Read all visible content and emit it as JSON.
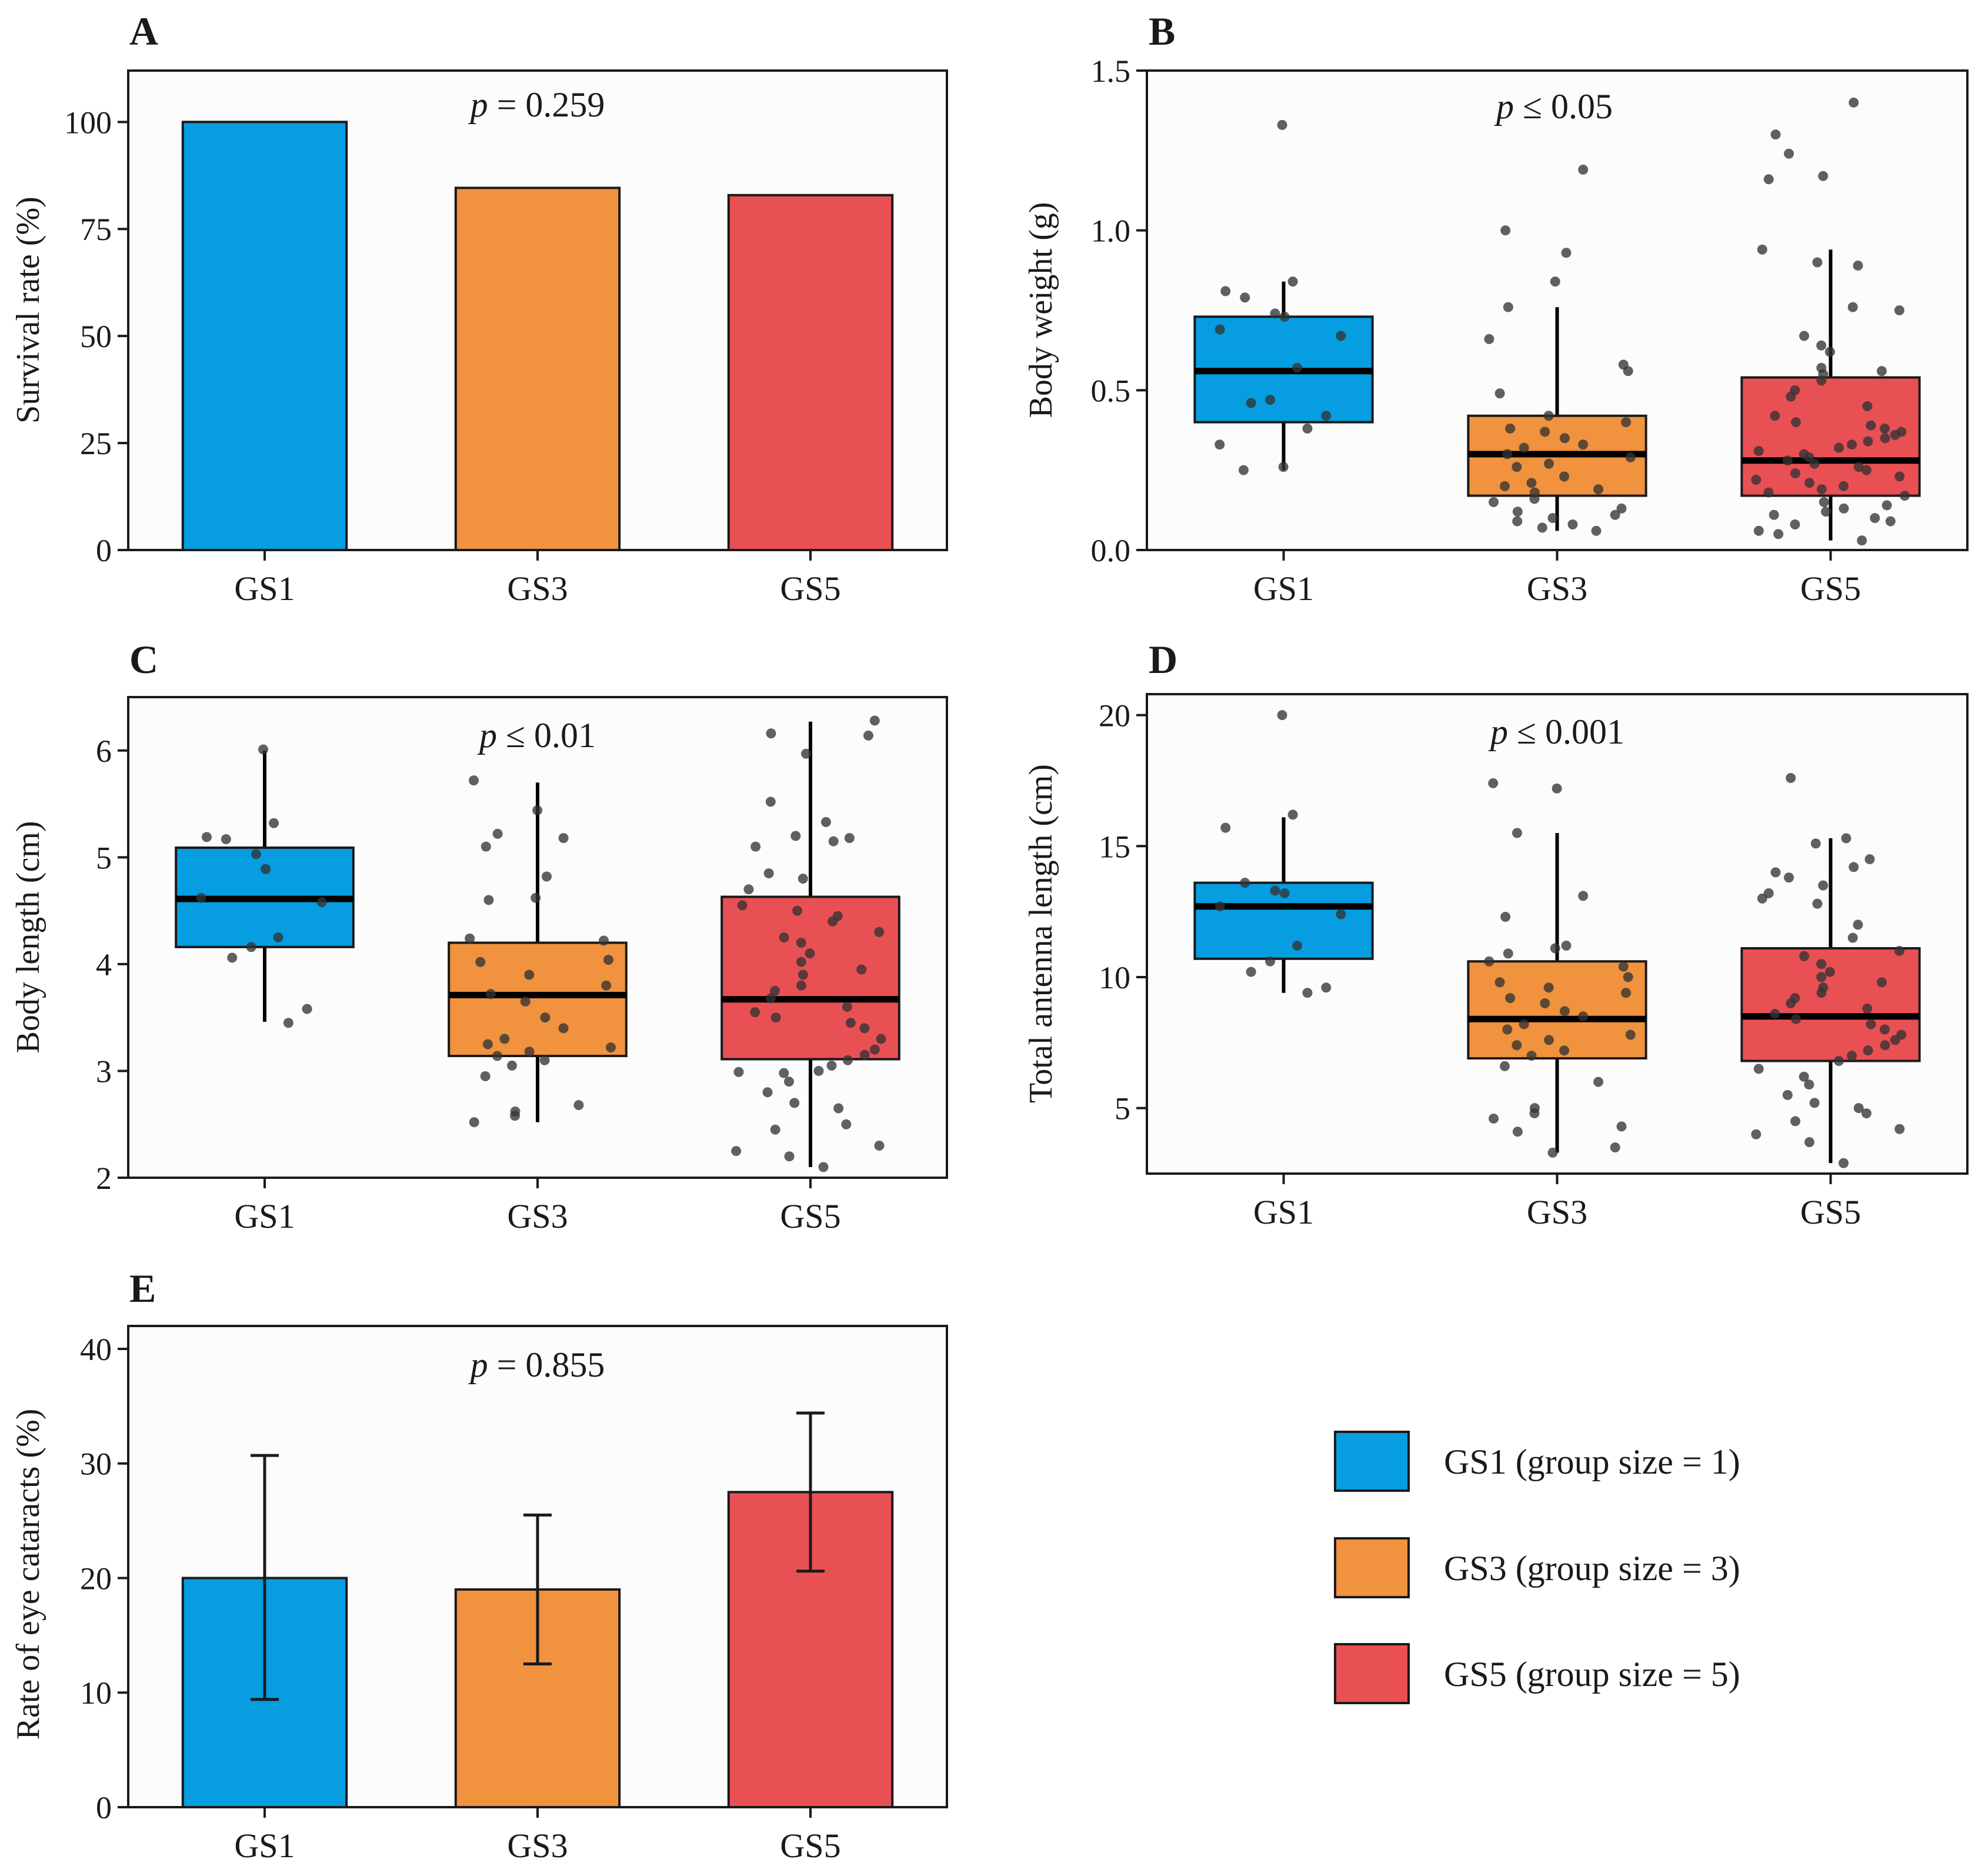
{
  "chart_data": [
    {
      "panel": "A",
      "type": "bar",
      "categories": [
        "GS1",
        "GS3",
        "GS5"
      ],
      "values": [
        100,
        84.6,
        82.9
      ],
      "ylabel": "Survival rate (%)",
      "xlabel": "",
      "ylim": [
        0,
        112
      ],
      "yticks": [
        0,
        25,
        50,
        75,
        100
      ],
      "p_symbol": "p",
      "p_text": " = 0.259"
    },
    {
      "panel": "B",
      "type": "box",
      "categories": [
        "GS1",
        "GS3",
        "GS5"
      ],
      "ylabel": "Body weight (g)",
      "xlabel": "",
      "ylim": [
        0,
        1.5
      ],
      "yticks": [
        0.0,
        0.5,
        1.0,
        1.5
      ],
      "ytick_labels": [
        "0.0",
        "0.5",
        "1.0",
        "1.5"
      ],
      "p_symbol": "p",
      "p_text": " ≤ 0.05",
      "boxes": [
        {
          "q1": 0.4,
          "median": 0.56,
          "q3": 0.73,
          "whisker_low": 0.25,
          "whisker_high": 0.84
        },
        {
          "q1": 0.17,
          "median": 0.3,
          "q3": 0.42,
          "whisker_low": 0.06,
          "whisker_high": 0.76
        },
        {
          "q1": 0.17,
          "median": 0.28,
          "q3": 0.54,
          "whisker_low": 0.03,
          "whisker_high": 0.94
        }
      ],
      "points": [
        [
          1.33,
          0.84,
          0.81,
          0.79,
          0.74,
          0.73,
          0.69,
          0.67,
          0.57,
          0.47,
          0.46,
          0.42,
          0.38,
          0.33,
          0.26,
          0.25
        ],
        [
          1.19,
          1.0,
          0.93,
          0.84,
          0.76,
          0.66,
          0.58,
          0.56,
          0.49,
          0.42,
          0.4,
          0.38,
          0.37,
          0.35,
          0.33,
          0.32,
          0.3,
          0.29,
          0.27,
          0.26,
          0.23,
          0.21,
          0.2,
          0.19,
          0.18,
          0.16,
          0.15,
          0.13,
          0.12,
          0.11,
          0.1,
          0.09,
          0.08,
          0.07,
          0.06
        ],
        [
          1.4,
          1.3,
          1.24,
          1.17,
          1.16,
          0.94,
          0.9,
          0.89,
          0.76,
          0.75,
          0.67,
          0.64,
          0.62,
          0.57,
          0.56,
          0.55,
          0.53,
          0.5,
          0.48,
          0.45,
          0.42,
          0.4,
          0.39,
          0.38,
          0.37,
          0.36,
          0.35,
          0.34,
          0.33,
          0.32,
          0.31,
          0.3,
          0.29,
          0.28,
          0.27,
          0.26,
          0.25,
          0.24,
          0.23,
          0.22,
          0.21,
          0.2,
          0.19,
          0.18,
          0.17,
          0.15,
          0.14,
          0.13,
          0.12,
          0.11,
          0.1,
          0.09,
          0.08,
          0.06,
          0.05,
          0.03
        ]
      ]
    },
    {
      "panel": "C",
      "type": "box",
      "categories": [
        "GS1",
        "GS3",
        "GS5"
      ],
      "ylabel": "Body length (cm)",
      "xlabel": "",
      "ylim": [
        2,
        6.5
      ],
      "yticks": [
        2,
        3,
        4,
        5,
        6
      ],
      "p_symbol": "p",
      "p_text": " ≤ 0.01",
      "boxes": [
        {
          "q1": 4.16,
          "median": 4.61,
          "q3": 5.09,
          "whisker_low": 3.46,
          "whisker_high": 6.0
        },
        {
          "q1": 3.14,
          "median": 3.71,
          "q3": 4.2,
          "whisker_low": 2.52,
          "whisker_high": 5.7
        },
        {
          "q1": 3.11,
          "median": 3.67,
          "q3": 4.63,
          "whisker_low": 2.1,
          "whisker_high": 6.27
        }
      ],
      "points": [
        [
          6.01,
          5.32,
          5.19,
          5.17,
          5.03,
          4.89,
          4.62,
          4.58,
          4.25,
          4.16,
          4.06,
          3.58,
          3.45
        ],
        [
          5.72,
          5.44,
          5.22,
          5.18,
          5.1,
          4.82,
          4.62,
          4.6,
          4.24,
          4.22,
          4.04,
          4.02,
          3.9,
          3.8,
          3.72,
          3.65,
          3.5,
          3.4,
          3.3,
          3.25,
          3.22,
          3.18,
          3.14,
          3.1,
          3.05,
          2.95,
          2.68,
          2.62,
          2.58,
          2.52
        ],
        [
          6.28,
          6.16,
          6.14,
          5.97,
          5.52,
          5.33,
          5.2,
          5.18,
          5.15,
          5.1,
          4.85,
          4.8,
          4.7,
          4.55,
          4.5,
          4.45,
          4.4,
          4.3,
          4.25,
          4.2,
          4.1,
          4.02,
          3.95,
          3.9,
          3.8,
          3.75,
          3.68,
          3.6,
          3.55,
          3.5,
          3.45,
          3.4,
          3.3,
          3.2,
          3.15,
          3.1,
          3.05,
          3.0,
          2.99,
          2.98,
          2.9,
          2.8,
          2.7,
          2.65,
          2.5,
          2.45,
          2.3,
          2.25,
          2.2,
          2.1
        ]
      ]
    },
    {
      "panel": "D",
      "type": "box",
      "categories": [
        "GS1",
        "GS3",
        "GS5"
      ],
      "ylabel": "Total antenna length (cm)",
      "xlabel": "",
      "ylim": [
        2.5,
        20.8
      ],
      "yticks": [
        5,
        10,
        15,
        20
      ],
      "p_symbol": "p",
      "p_text": " ≤ 0.001",
      "boxes": [
        {
          "q1": 10.7,
          "median": 12.7,
          "q3": 13.6,
          "whisker_low": 9.4,
          "whisker_high": 16.1
        },
        {
          "q1": 6.9,
          "median": 8.4,
          "q3": 10.6,
          "whisker_low": 3.3,
          "whisker_high": 15.5
        },
        {
          "q1": 6.8,
          "median": 8.5,
          "q3": 11.1,
          "whisker_low": 2.9,
          "whisker_high": 15.3
        }
      ],
      "points": [
        [
          20.0,
          16.2,
          15.7,
          13.6,
          13.3,
          13.2,
          12.7,
          12.4,
          11.2,
          10.6,
          10.2,
          9.6,
          9.4
        ],
        [
          17.4,
          17.2,
          15.5,
          13.1,
          12.3,
          11.2,
          11.1,
          10.9,
          10.6,
          10.4,
          10.0,
          9.8,
          9.6,
          9.4,
          9.2,
          9.0,
          8.7,
          8.5,
          8.2,
          8.0,
          7.8,
          7.6,
          7.4,
          7.2,
          7.0,
          6.6,
          6.0,
          5.0,
          4.8,
          4.6,
          4.3,
          4.1,
          3.5,
          3.3
        ],
        [
          17.6,
          15.3,
          15.1,
          14.5,
          14.2,
          14.0,
          13.8,
          13.5,
          13.2,
          13.0,
          12.8,
          12.0,
          11.5,
          11.0,
          10.8,
          10.5,
          10.2,
          10.0,
          9.8,
          9.6,
          9.4,
          9.2,
          9.0,
          8.8,
          8.6,
          8.4,
          8.2,
          8.0,
          7.8,
          7.6,
          7.4,
          7.2,
          7.0,
          6.8,
          6.5,
          6.2,
          5.9,
          5.5,
          5.2,
          5.0,
          4.8,
          4.5,
          4.2,
          4.0,
          3.7,
          2.9
        ]
      ]
    },
    {
      "panel": "E",
      "type": "bar",
      "categories": [
        "GS1",
        "GS3",
        "GS5"
      ],
      "values": [
        20.0,
        19.0,
        27.5
      ],
      "error_low": [
        9.4,
        12.5,
        20.6
      ],
      "error_high": [
        30.7,
        25.5,
        34.4
      ],
      "ylabel": "Rate of eye cataracts (%)",
      "xlabel": "",
      "ylim": [
        0,
        42
      ],
      "yticks": [
        0,
        10,
        20,
        30,
        40
      ],
      "p_symbol": "p",
      "p_text": " = 0.855"
    }
  ],
  "legend": {
    "items": [
      {
        "label": "GS1 (group size = 1)",
        "color": "#069ee0"
      },
      {
        "label": "GS3 (group size = 3)",
        "color": "#f0923e"
      },
      {
        "label": "GS5 (group size = 5)",
        "color": "#e95054"
      }
    ]
  },
  "colors": {
    "GS1": "#069ee0",
    "GS3": "#f0923e",
    "GS5": "#e95054",
    "panel_bg": "#fcfcfc",
    "points": "#333333"
  }
}
